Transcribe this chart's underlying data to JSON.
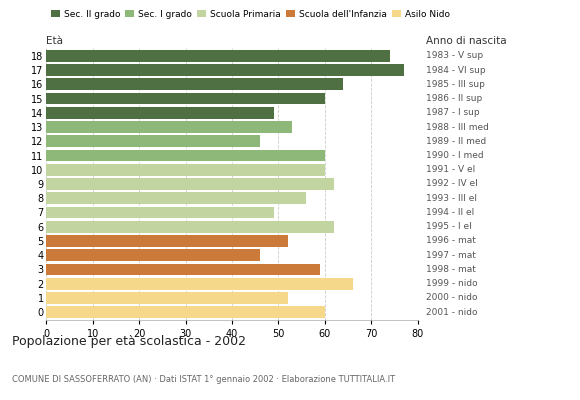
{
  "ages": [
    0,
    1,
    2,
    3,
    4,
    5,
    6,
    7,
    8,
    9,
    10,
    11,
    12,
    13,
    14,
    15,
    16,
    17,
    18
  ],
  "values": [
    60,
    52,
    66,
    59,
    46,
    52,
    62,
    49,
    56,
    62,
    60,
    60,
    46,
    53,
    49,
    60,
    64,
    77,
    74
  ],
  "right_labels": [
    "2001 - nido",
    "2000 - nido",
    "1999 - nido",
    "1998 - mat",
    "1997 - mat",
    "1996 - mat",
    "1995 - I el",
    "1994 - II el",
    "1993 - III el",
    "1992 - IV el",
    "1991 - V el",
    "1990 - I med",
    "1989 - II med",
    "1988 - III med",
    "1987 - I sup",
    "1986 - II sup",
    "1985 - III sup",
    "1984 - VI sup",
    "1983 - V sup"
  ],
  "bar_colors": [
    "#f5d88a",
    "#f5d88a",
    "#f5d88a",
    "#cc7a3a",
    "#cc7a3a",
    "#cc7a3a",
    "#c2d4a0",
    "#c2d4a0",
    "#c2d4a0",
    "#c2d4a0",
    "#c2d4a0",
    "#8db87a",
    "#8db87a",
    "#8db87a",
    "#4e7042",
    "#4e7042",
    "#4e7042",
    "#4e7042",
    "#4e7042"
  ],
  "xlim": [
    0,
    80
  ],
  "xticks": [
    0,
    10,
    20,
    30,
    40,
    50,
    60,
    70,
    80
  ],
  "title": "Popolazione per età scolastica - 2002",
  "subtitle": "COMUNE DI SASSOFERRATO (AN) · Dati ISTAT 1° gennaio 2002 · Elaborazione TUTTITALIA.IT",
  "age_label": "Età",
  "birth_year_label": "Anno di nascita",
  "legend_labels": [
    "Sec. II grado",
    "Sec. I grado",
    "Scuola Primaria",
    "Scuola dell'Infanzia",
    "Asilo Nido"
  ],
  "legend_colors": [
    "#4e7042",
    "#8db87a",
    "#c2d4a0",
    "#cc7a3a",
    "#f5d88a"
  ],
  "background_color": "#ffffff",
  "grid_color": "#cccccc"
}
